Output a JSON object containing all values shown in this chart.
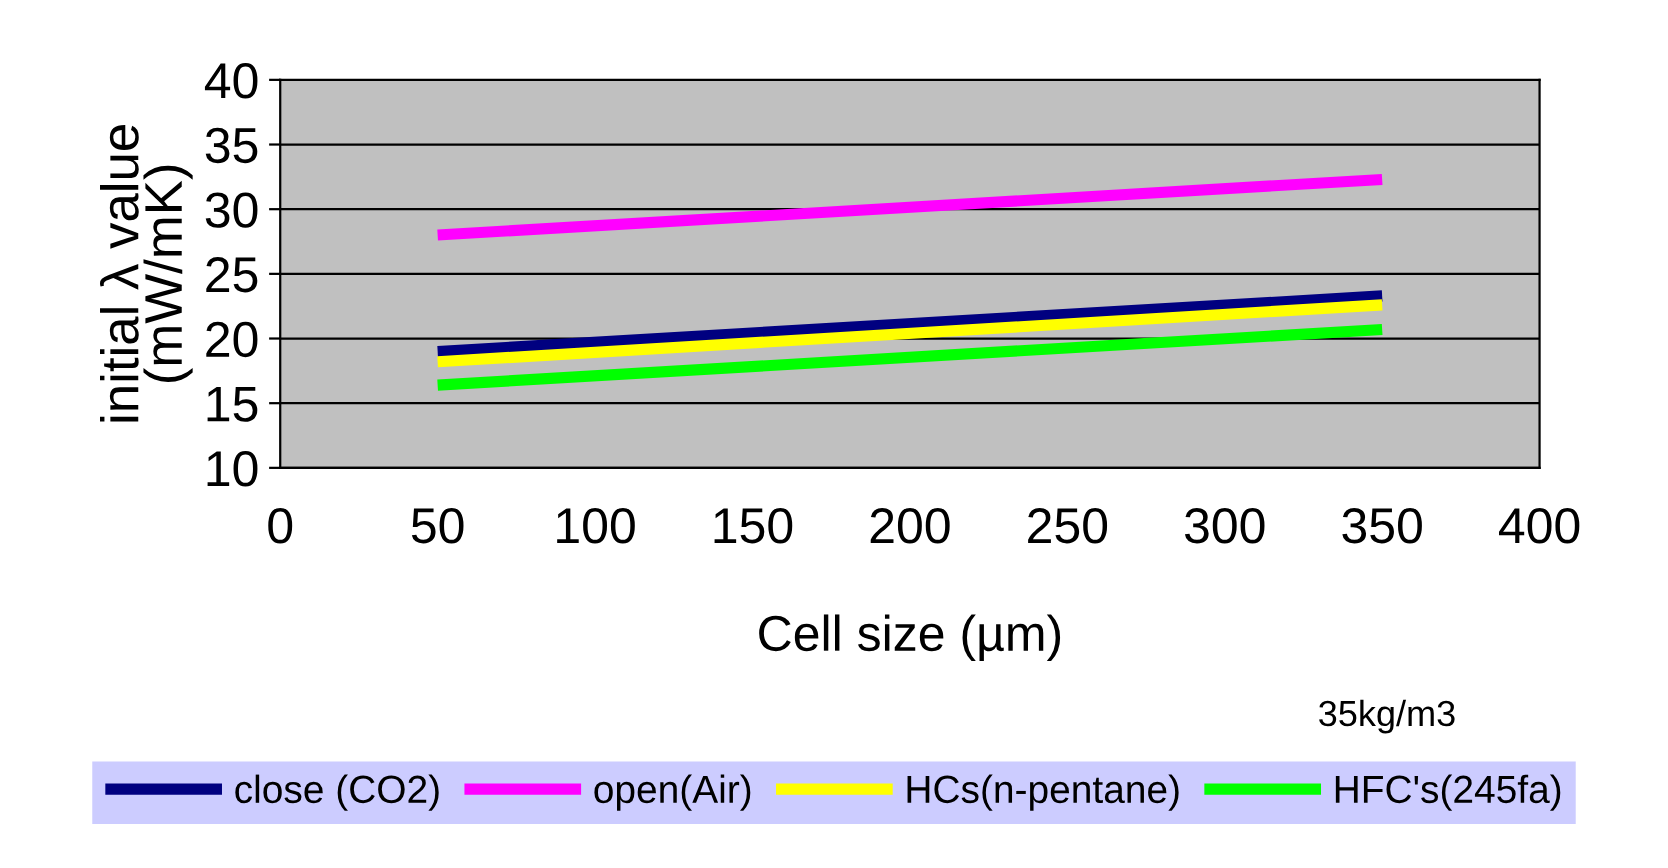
{
  "chart_data": {
    "type": "line",
    "xlabel": "Cell size (µm)",
    "ylabel": "initial λ value\n(mW/mK)",
    "x": [
      50,
      350
    ],
    "series": [
      {
        "name": "close (CO2)",
        "color": "#000080",
        "values": [
          19.0,
          23.3
        ]
      },
      {
        "name": "open(Air)",
        "color": "#ff00ff",
        "values": [
          28.0,
          32.3
        ]
      },
      {
        "name": "HCs(n-pentane)",
        "color": "#ffff00",
        "values": [
          18.2,
          22.6
        ]
      },
      {
        "name": "HFC's(245fa)",
        "color": "#00ff00",
        "values": [
          16.4,
          20.7
        ]
      }
    ],
    "xlim": [
      0,
      400
    ],
    "xticks": [
      0,
      50,
      100,
      150,
      200,
      250,
      300,
      350,
      400
    ],
    "ylim": [
      10,
      40
    ],
    "yticks": [
      10,
      15,
      20,
      25,
      30,
      35,
      40
    ],
    "grid": "y",
    "legend": "bottom",
    "marker": "none",
    "line_style": "solid",
    "annotations": [
      "35kg/m3"
    ]
  }
}
